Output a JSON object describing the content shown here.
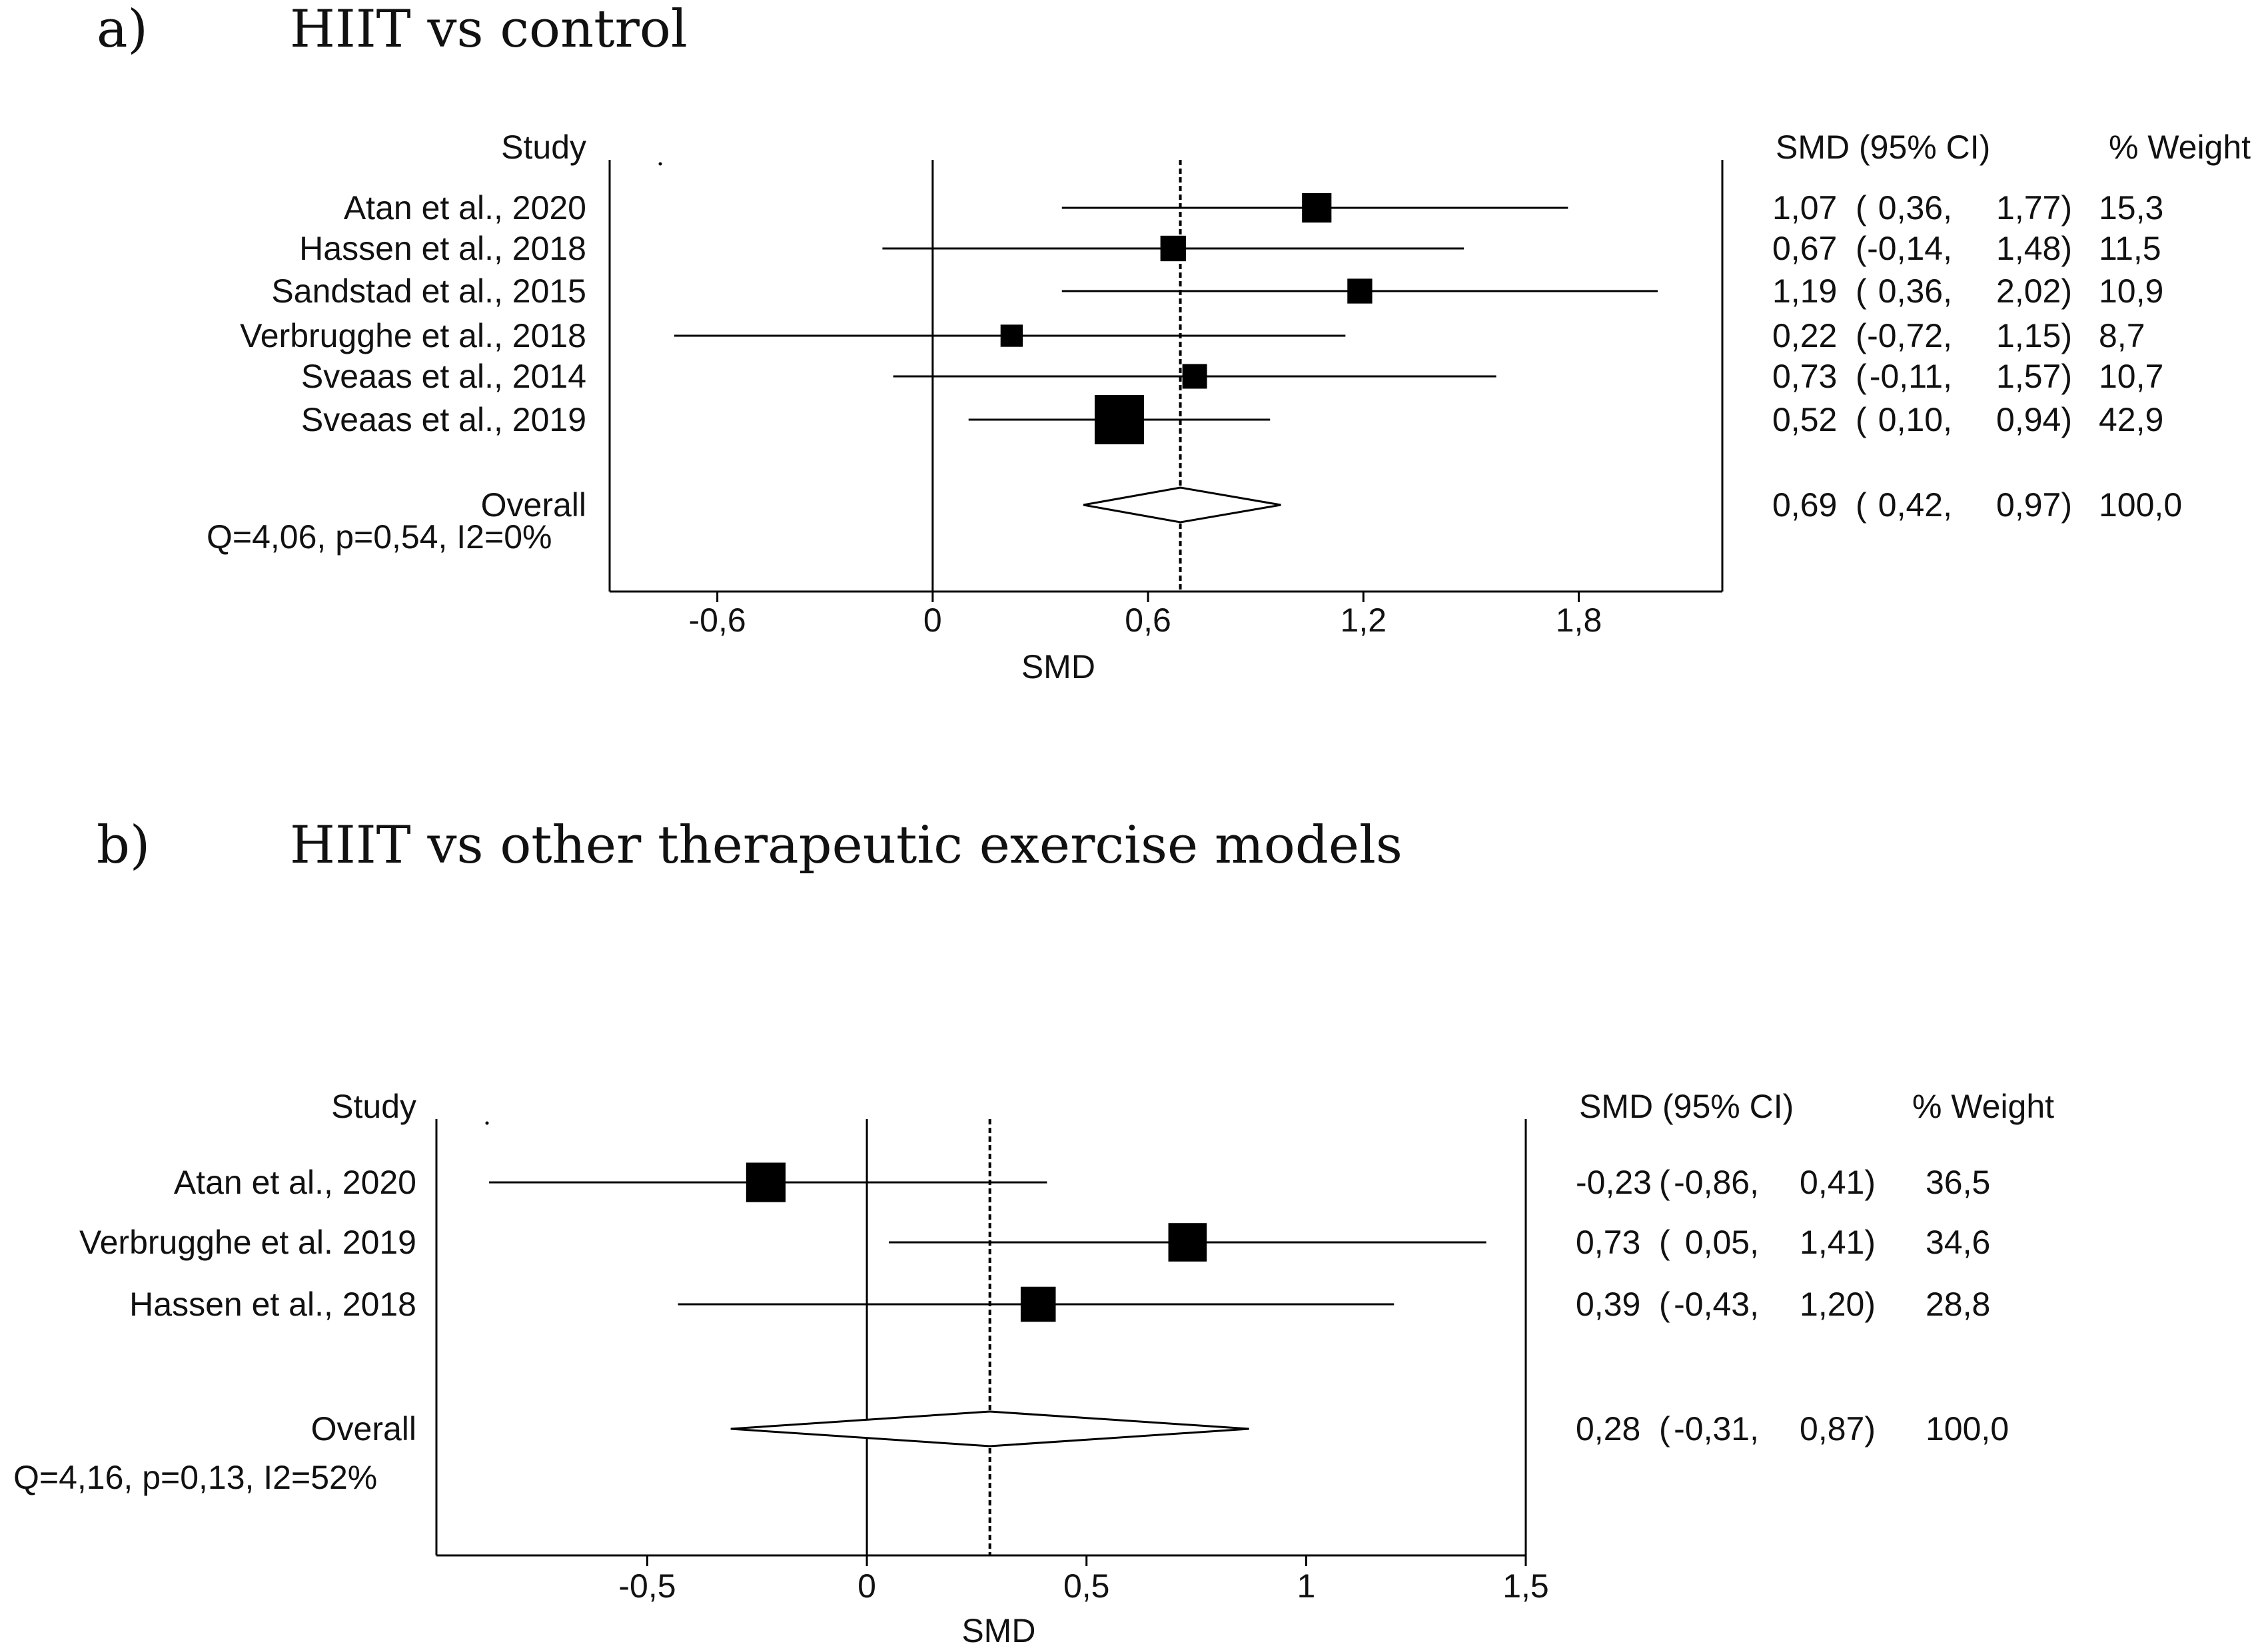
{
  "colors": {
    "ink": "#000000",
    "text": "#111111",
    "background": "#ffffff"
  },
  "chart_data": [
    {
      "type": "forest",
      "panel": "a)",
      "title": "HIIT vs control",
      "header_study": "Study",
      "header_ci": "SMD (95% CI)",
      "header_weight": "% Weight",
      "xlabel": "SMD",
      "xlim": [
        -0.9,
        2.2
      ],
      "xticks": [
        -0.6,
        0,
        0.6,
        1.2,
        1.8
      ],
      "xtick_labels": [
        "-0,6",
        "0",
        "0,6",
        "1,2",
        "1,8"
      ],
      "null_line": 0,
      "studies": [
        {
          "name": "Atan et al., 2020",
          "smd": 1.07,
          "lo": 0.36,
          "hi": 1.77,
          "weight": 15.3,
          "smd_text": "1,07",
          "lo_text": "0,36,",
          "hi_text": "1,77)",
          "weight_text": "15,3"
        },
        {
          "name": "Hassen et al., 2018",
          "smd": 0.67,
          "lo": -0.14,
          "hi": 1.48,
          "weight": 11.5,
          "smd_text": "0,67",
          "lo_text": "-0,14,",
          "hi_text": "1,48)",
          "weight_text": "11,5"
        },
        {
          "name": "Sandstad et al., 2015",
          "smd": 1.19,
          "lo": 0.36,
          "hi": 2.02,
          "weight": 10.9,
          "smd_text": "1,19",
          "lo_text": "0,36,",
          "hi_text": "2,02)",
          "weight_text": "10,9"
        },
        {
          "name": "Verbrugghe et al., 2018",
          "smd": 0.22,
          "lo": -0.72,
          "hi": 1.15,
          "weight": 8.7,
          "smd_text": "0,22",
          "lo_text": "-0,72,",
          "hi_text": "1,15)",
          "weight_text": "8,7"
        },
        {
          "name": "Sveaas et al., 2014",
          "smd": 0.73,
          "lo": -0.11,
          "hi": 1.57,
          "weight": 10.7,
          "smd_text": "0,73",
          "lo_text": "-0,11,",
          "hi_text": "1,57)",
          "weight_text": "10,7"
        },
        {
          "name": "Sveaas et al., 2019",
          "smd": 0.52,
          "lo": 0.1,
          "hi": 0.94,
          "weight": 42.9,
          "smd_text": "0,52",
          "lo_text": "0,10,",
          "hi_text": "0,94)",
          "weight_text": "42,9"
        }
      ],
      "overall": {
        "name": "Overall",
        "smd": 0.69,
        "lo": 0.42,
        "hi": 0.97,
        "weight": 100.0,
        "smd_text": "0,69",
        "lo_text": "0,42,",
        "hi_text": "0,97)",
        "weight_text": "100,0"
      },
      "heterogeneity": "Q=4,06, p=0,54, I2=0%"
    },
    {
      "type": "forest",
      "panel": "b)",
      "title": "HIIT vs other therapeutic exercise models",
      "header_study": "Study",
      "header_ci": "SMD (95% CI)",
      "header_weight": "% Weight",
      "xlabel": "SMD",
      "xlim": [
        -0.98,
        1.5
      ],
      "xticks": [
        -0.5,
        0,
        0.5,
        1,
        1.5
      ],
      "xtick_labels": [
        "-0,5",
        "0",
        "0,5",
        "1",
        "1,5"
      ],
      "null_line": 0,
      "studies": [
        {
          "name": "Atan et al., 2020",
          "smd": -0.23,
          "lo": -0.86,
          "hi": 0.41,
          "weight": 36.5,
          "smd_text": "-0,23",
          "lo_text": "-0,86,",
          "hi_text": "0,41)",
          "weight_text": "36,5"
        },
        {
          "name": "Verbrugghe et al. 2019",
          "smd": 0.73,
          "lo": 0.05,
          "hi": 1.41,
          "weight": 34.6,
          "smd_text": "0,73",
          "lo_text": "0,05,",
          "hi_text": "1,41)",
          "weight_text": "34,6"
        },
        {
          "name": "Hassen et al., 2018",
          "smd": 0.39,
          "lo": -0.43,
          "hi": 1.2,
          "weight": 28.8,
          "smd_text": "0,39",
          "lo_text": "-0,43,",
          "hi_text": "1,20)",
          "weight_text": "28,8"
        }
      ],
      "overall": {
        "name": "Overall",
        "smd": 0.28,
        "lo": -0.31,
        "hi": 0.87,
        "weight": 100.0,
        "smd_text": "0,28",
        "lo_text": "-0,31,",
        "hi_text": "0,87)",
        "weight_text": "100,0"
      },
      "heterogeneity": "Q=4,16, p=0,13, I2=52%"
    }
  ]
}
